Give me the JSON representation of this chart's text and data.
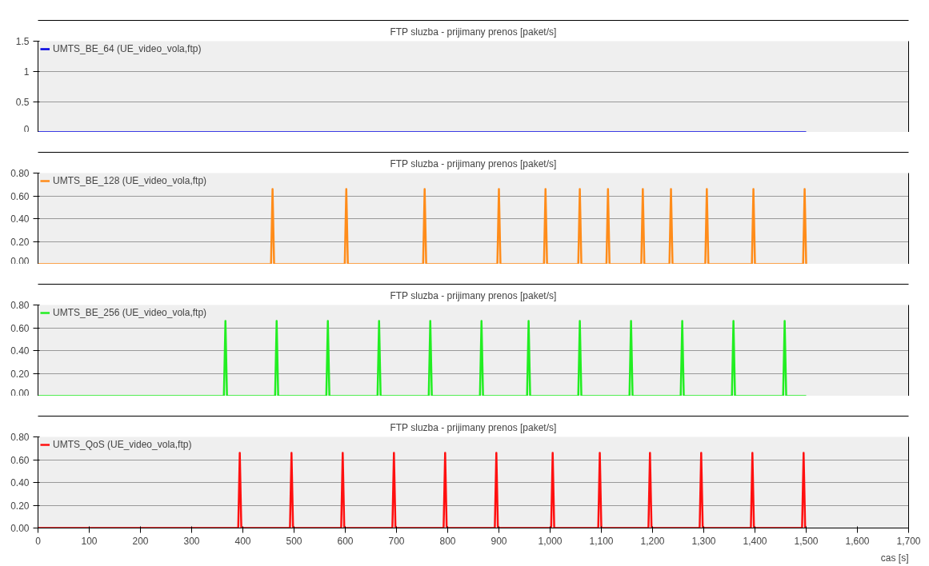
{
  "chart_data": [
    {
      "type": "line",
      "title": "FTP sluzba - prijimany prenos [paket/s]",
      "xlim": [
        0,
        1700
      ],
      "ylim": [
        0,
        1.5
      ],
      "yticks": [
        0,
        0.5,
        1,
        1.5
      ],
      "tick_labels": "y",
      "grid": "y",
      "legend": "top left",
      "series": [
        {
          "name": "UMTS_BE_64 (UE_video_vola,ftp)",
          "color": "#0000e0",
          "x": [
            0,
            1500
          ],
          "values": [
            0,
            0
          ]
        }
      ]
    },
    {
      "type": "line",
      "title": "FTP sluzba - prijimany prenos [paket/s]",
      "xlim": [
        0,
        1700
      ],
      "ylim": [
        0,
        0.8
      ],
      "yticks": [
        {
          "value": 0,
          "label": "0.00"
        },
        {
          "value": 0.2,
          "label": "0.20"
        },
        {
          "value": 0.4,
          "label": "0.40"
        },
        {
          "value": 0.6,
          "label": "0.60"
        },
        {
          "value": 0.8,
          "label": "0.80"
        }
      ],
      "tick_labels": "y",
      "grid": "y",
      "legend": "top left",
      "series": [
        {
          "name": "UMTS_BE_128 (UE_video_vola,ftp)",
          "color": "#ff8c1a",
          "x": [
            0,
            455,
            458,
            461,
            599,
            602,
            605,
            752,
            755,
            758,
            897,
            900,
            903,
            988,
            991,
            994,
            1055,
            1058,
            1061,
            1110,
            1113,
            1116,
            1178,
            1181,
            1184,
            1233,
            1236,
            1239,
            1303,
            1306,
            1309,
            1394,
            1397,
            1400,
            1494,
            1497,
            1500
          ],
          "values": [
            0,
            0,
            0.66,
            0,
            0,
            0.66,
            0,
            0,
            0.66,
            0,
            0,
            0.66,
            0,
            0,
            0.66,
            0,
            0,
            0.66,
            0,
            0,
            0.66,
            0,
            0,
            0.66,
            0,
            0,
            0.66,
            0,
            0,
            0.66,
            0,
            0,
            0.66,
            0,
            0,
            0.66,
            0
          ]
        }
      ]
    },
    {
      "type": "line",
      "title": "FTP sluzba - prijimany prenos [paket/s]",
      "xlim": [
        0,
        1700
      ],
      "ylim": [
        0,
        0.8
      ],
      "yticks": [
        {
          "value": 0,
          "label": "0.00"
        },
        {
          "value": 0.2,
          "label": "0.20"
        },
        {
          "value": 0.4,
          "label": "0.40"
        },
        {
          "value": 0.6,
          "label": "0.60"
        },
        {
          "value": 0.8,
          "label": "0.80"
        }
      ],
      "tick_labels": "y",
      "grid": "y",
      "legend": "top left",
      "series": [
        {
          "name": "UMTS_BE_256 (UE_video_vola,ftp)",
          "color": "#22ee22",
          "x": [
            0,
            363,
            366,
            369,
            463,
            466,
            469,
            563,
            566,
            569,
            663,
            666,
            669,
            763,
            766,
            769,
            863,
            866,
            869,
            955,
            958,
            961,
            1055,
            1058,
            1061,
            1155,
            1158,
            1161,
            1255,
            1258,
            1261,
            1355,
            1358,
            1361,
            1455,
            1458,
            1461,
            1500
          ],
          "values": [
            0,
            0,
            0.66,
            0,
            0,
            0.66,
            0,
            0,
            0.66,
            0,
            0,
            0.66,
            0,
            0,
            0.66,
            0,
            0,
            0.66,
            0,
            0,
            0.66,
            0,
            0,
            0.66,
            0,
            0,
            0.66,
            0,
            0,
            0.66,
            0,
            0,
            0.66,
            0,
            0,
            0.66,
            0,
            0
          ]
        }
      ]
    },
    {
      "type": "line",
      "title": "FTP sluzba - prijimany prenos [paket/s]",
      "xlabel": "cas [s]",
      "xlim": [
        0,
        1700
      ],
      "xticks": [
        0,
        100,
        200,
        300,
        400,
        500,
        600,
        700,
        800,
        900,
        {
          "value": 1000,
          "label": "1,000"
        },
        {
          "value": 1100,
          "label": "1,100"
        },
        {
          "value": 1200,
          "label": "1,200"
        },
        {
          "value": 1300,
          "label": "1,300"
        },
        {
          "value": 1400,
          "label": "1,400"
        },
        {
          "value": 1500,
          "label": "1,500"
        },
        {
          "value": 1600,
          "label": "1,600"
        },
        {
          "value": 1700,
          "label": "1,700"
        }
      ],
      "ylim": [
        0,
        0.8
      ],
      "yticks": [
        {
          "value": 0,
          "label": "0.00"
        },
        {
          "value": 0.2,
          "label": "0.20"
        },
        {
          "value": 0.4,
          "label": "0.40"
        },
        {
          "value": 0.6,
          "label": "0.60"
        },
        {
          "value": 0.8,
          "label": "0.80"
        }
      ],
      "grid": "y",
      "legend": "top left",
      "series": [
        {
          "name": "UMTS_QoS (UE_video_vola,ftp)",
          "color": "#ff1010",
          "x": [
            0,
            391,
            394,
            397,
            492,
            495,
            498,
            592,
            595,
            598,
            692,
            695,
            698,
            792,
            795,
            798,
            892,
            895,
            898,
            1002,
            1005,
            1008,
            1094,
            1097,
            1100,
            1192,
            1195,
            1198,
            1292,
            1295,
            1298,
            1392,
            1395,
            1398,
            1492,
            1495,
            1498,
            1500
          ],
          "values": [
            0,
            0,
            0.66,
            0,
            0,
            0.66,
            0,
            0,
            0.66,
            0,
            0,
            0.66,
            0,
            0,
            0.66,
            0,
            0,
            0.66,
            0,
            0,
            0.66,
            0,
            0,
            0.66,
            0,
            0,
            0.66,
            0,
            0,
            0.66,
            0,
            0,
            0.66,
            0,
            0,
            0.66,
            0,
            0
          ]
        }
      ]
    }
  ]
}
